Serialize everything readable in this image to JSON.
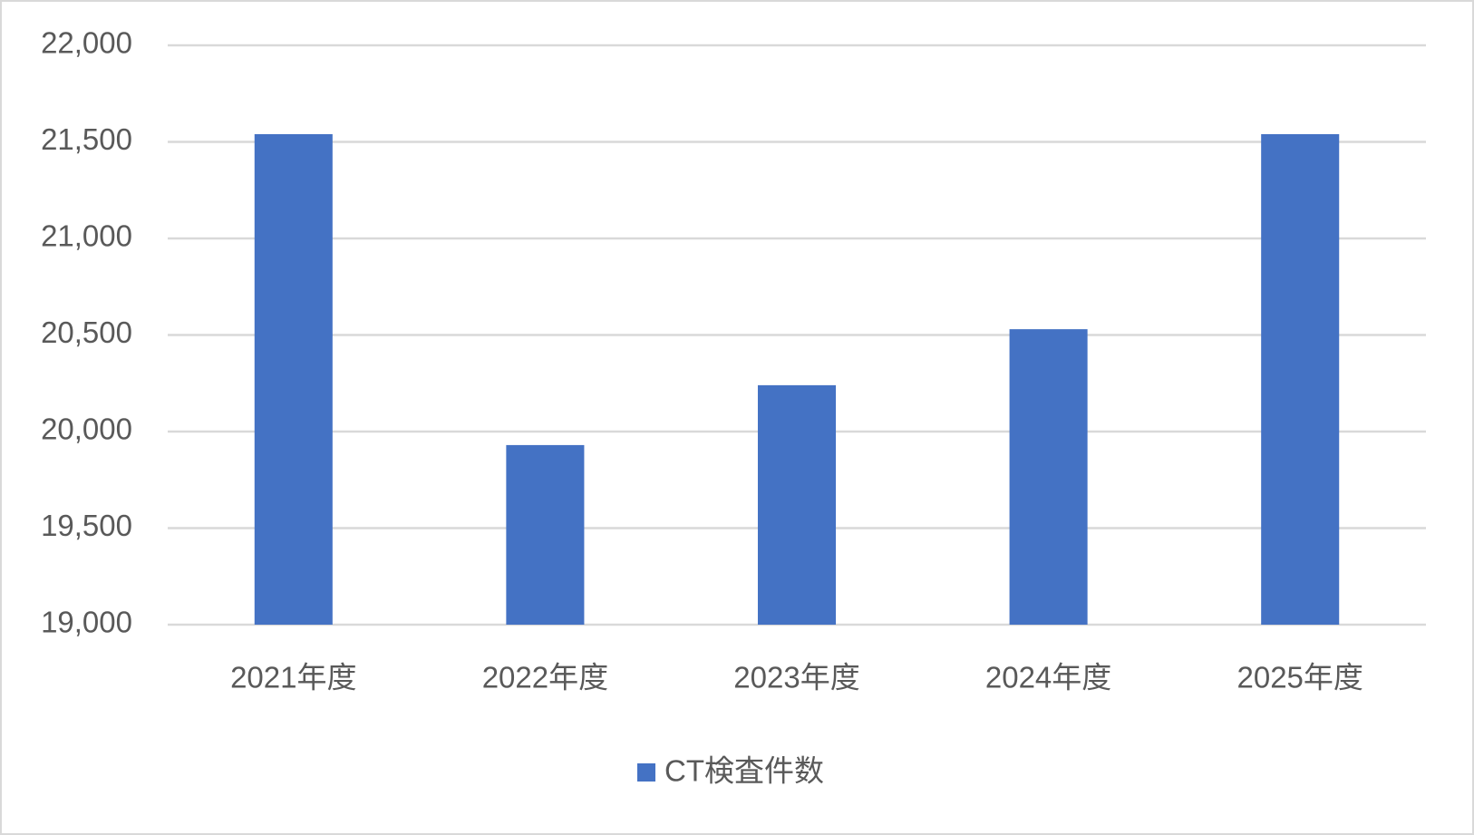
{
  "chart_data": {
    "type": "bar",
    "categories": [
      "2021年度",
      "2022年度",
      "2023年度",
      "2024年度",
      "2025年度"
    ],
    "series": [
      {
        "name": "CT検査件数",
        "color": "#4472c4",
        "values": [
          21540,
          19930,
          20240,
          20530,
          21540
        ]
      }
    ],
    "ylim": [
      19000,
      22000
    ],
    "yticks": [
      {
        "value": 19000,
        "label": "19,000"
      },
      {
        "value": 19500,
        "label": "19,500"
      },
      {
        "value": 20000,
        "label": "20,000"
      },
      {
        "value": 20500,
        "label": "20,500"
      },
      {
        "value": 21000,
        "label": "21,000"
      },
      {
        "value": 21500,
        "label": "21,500"
      },
      {
        "value": 22000,
        "label": "22,000"
      }
    ],
    "grid": true,
    "legend": "bottom"
  }
}
